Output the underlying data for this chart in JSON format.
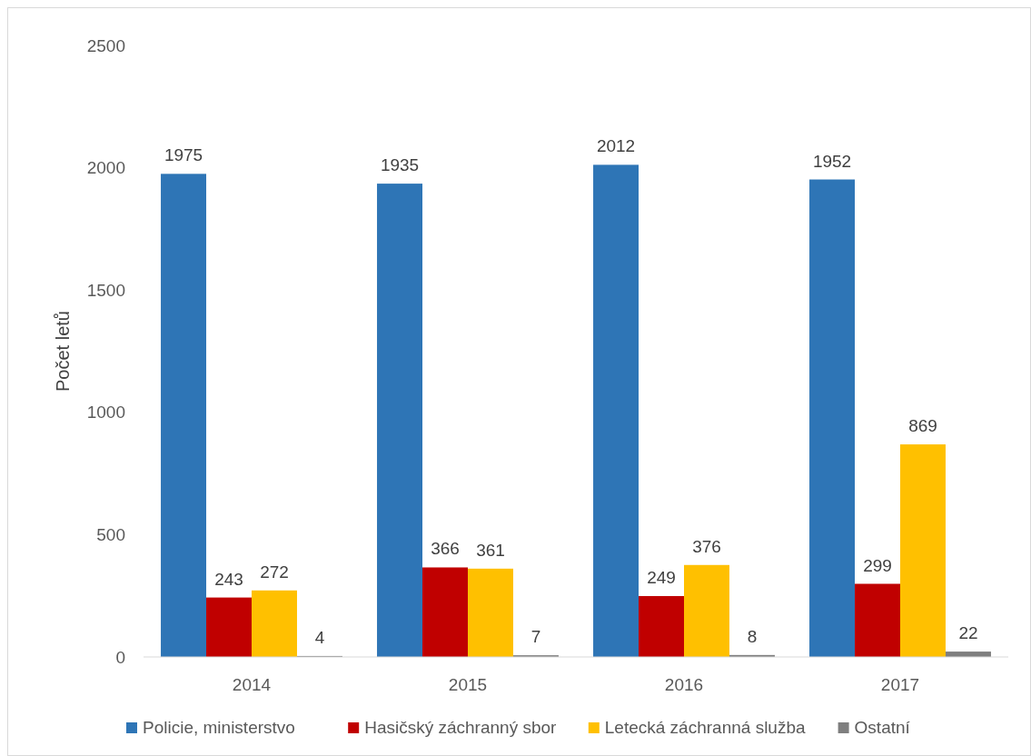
{
  "chart_data": {
    "type": "bar",
    "ylabel": "Počet letů",
    "categories": [
      "2014",
      "2015",
      "2016",
      "2017"
    ],
    "series": [
      {
        "name": "Policie, ministerstvo",
        "color": "#2e75b6",
        "values": [
          1975,
          1935,
          2012,
          1952
        ]
      },
      {
        "name": "Hasičský záchranný sbor",
        "color": "#c00000",
        "values": [
          243,
          366,
          249,
          299
        ]
      },
      {
        "name": "Letecká záchranná služba",
        "color": "#ffc000",
        "values": [
          272,
          361,
          376,
          869
        ]
      },
      {
        "name": "Ostatní",
        "color": "#7f7f7f",
        "values": [
          4,
          7,
          8,
          22
        ]
      }
    ],
    "ylim": [
      0,
      2500
    ],
    "yticks": [
      0,
      500,
      1000,
      1500,
      2000,
      2500
    ],
    "grid": false,
    "legend": "bottom",
    "data_labels": true
  }
}
